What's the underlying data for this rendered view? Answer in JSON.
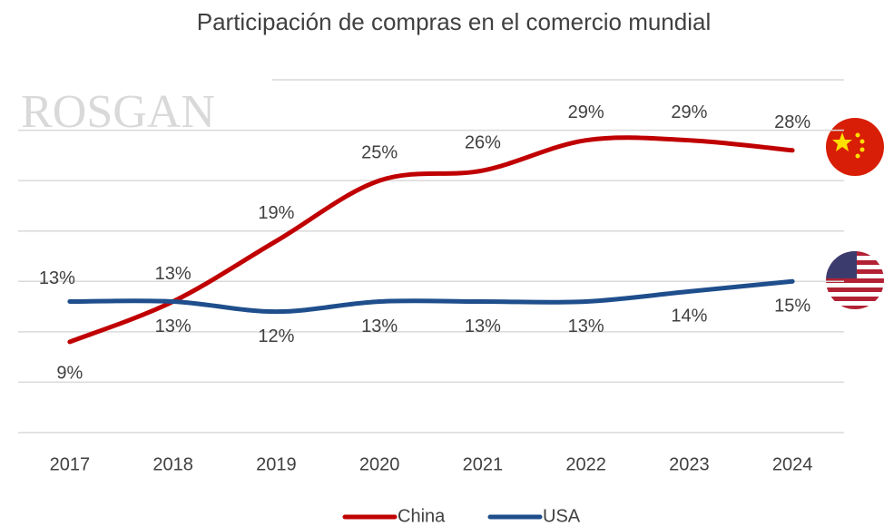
{
  "chart_data": {
    "type": "line",
    "title": "Participación de compras en el comercio mundial",
    "watermark": "ROSGAN",
    "categories": [
      "2017",
      "2018",
      "2019",
      "2020",
      "2021",
      "2022",
      "2023",
      "2024"
    ],
    "series": [
      {
        "name": "China",
        "color": "#c00000",
        "values": [
          9,
          13,
          19,
          25,
          26,
          29,
          29,
          28
        ],
        "value_labels": [
          "9%",
          "13%",
          "19%",
          "25%",
          "26%",
          "29%",
          "29%",
          "28%"
        ]
      },
      {
        "name": "USA",
        "color": "#1f4e8c",
        "values": [
          13,
          13,
          12,
          13,
          13,
          13,
          14,
          15
        ],
        "value_labels": [
          "13%",
          "13%",
          "12%",
          "13%",
          "13%",
          "13%",
          "14%",
          "15%"
        ]
      }
    ],
    "ylim": [
      0,
      35
    ],
    "yticks": [
      0,
      5,
      10,
      15,
      20,
      25,
      30,
      35
    ],
    "grid": true,
    "smooth": true,
    "legend": "bottom"
  }
}
